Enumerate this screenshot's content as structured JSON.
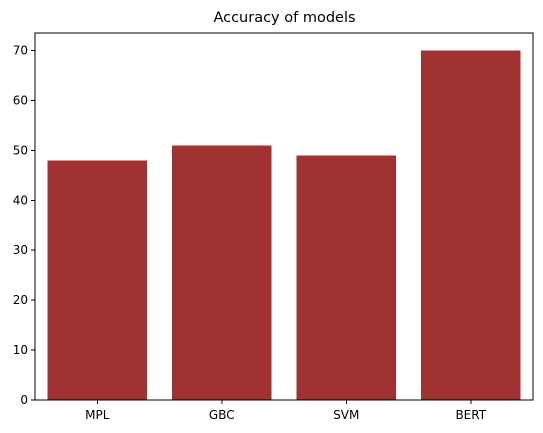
{
  "chart_data": {
    "type": "bar",
    "title": "Accuracy of models",
    "xlabel": "",
    "ylabel": "",
    "categories": [
      "MPL",
      "GBC",
      "SVM",
      "BERT"
    ],
    "values": [
      48,
      51,
      49,
      70
    ],
    "ylim": [
      0,
      73.5
    ],
    "yticks": [
      0,
      10,
      20,
      30,
      40,
      50,
      60,
      70
    ],
    "bar_color": "#a03232",
    "grid": false,
    "legend": "none"
  }
}
